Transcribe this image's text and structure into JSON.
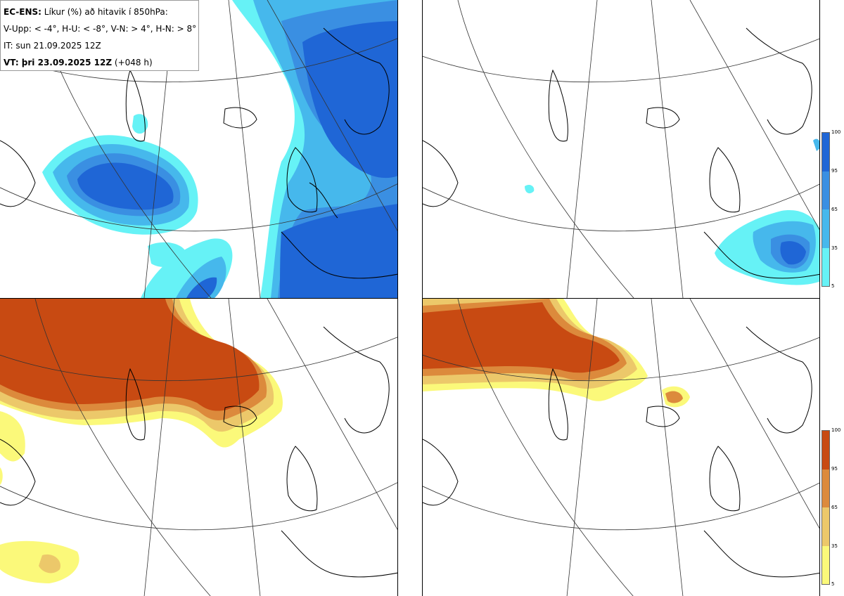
{
  "header": {
    "line1_bold": "EC-ENS:",
    "line1_rest": "Líkur (%) að hitavik í 850hPa:",
    "line2": "V-Upp: < -4°, H-U: < -8°, V-N: > 4°, H-N: > 8°",
    "line3": "IT: sun 21.09.2025 12Z",
    "line4_bold": "VT: þri 23.09.2025 12Z",
    "line4_rest": "(+048 h)"
  },
  "legend_blue": {
    "ticks": [
      "100",
      "95",
      "65",
      "35",
      "5"
    ],
    "colors": [
      "#1f66d6",
      "#3a8fe2",
      "#46b8ec",
      "#66f2f6"
    ]
  },
  "legend_warm": {
    "ticks": [
      "100",
      "95",
      "65",
      "35",
      "5"
    ],
    "colors": [
      "#c84a12",
      "#dc8a3c",
      "#ecc86a",
      "#fbf97a"
    ]
  },
  "panels": [
    {
      "name": "upper-left",
      "quantity": "V-Upp"
    },
    {
      "name": "upper-right",
      "quantity": "H-U"
    },
    {
      "name": "lower-left",
      "quantity": "V-N"
    },
    {
      "name": "lower-right",
      "quantity": "H-N"
    }
  ]
}
